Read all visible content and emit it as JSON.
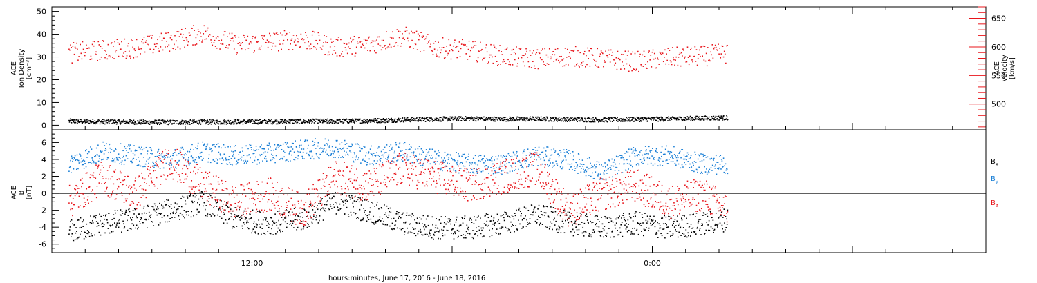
{
  "chart_data": [
    {
      "type": "scatter",
      "panel": "top",
      "ylabel_lines": [
        "ACE",
        "Ion Density",
        "[cm⁻³]"
      ],
      "ylim": [
        -2,
        52
      ],
      "yticks": [
        "0",
        "10",
        "20",
        "30",
        "40",
        "50"
      ],
      "ytick_values": [
        0,
        10,
        20,
        30,
        40,
        50
      ],
      "right_axis": {
        "ylabel_lines": [
          "ACE",
          "Velocity",
          "[km/s]"
        ],
        "ylim": [
          455,
          670
        ],
        "yticks": [
          "500",
          "550",
          "600",
          "650"
        ],
        "ytick_values": [
          500,
          550,
          600,
          650
        ],
        "color": "#e8151b"
      },
      "x_range_hours": [
        0,
        56
      ],
      "data_extent_hours": [
        1,
        40.5
      ],
      "series": [
        {
          "role": "ion-density",
          "color": "#000000",
          "axis": "left",
          "x": [
            1,
            3,
            5,
            7,
            9,
            11,
            13,
            15,
            17,
            19,
            21,
            23,
            25,
            27,
            29,
            31,
            33,
            35,
            37,
            39,
            40.5
          ],
          "y": [
            2,
            1.8,
            1.6,
            1.5,
            1.6,
            1.7,
            1.8,
            1.9,
            2.0,
            2.2,
            2.6,
            2.9,
            3.1,
            2.9,
            3.0,
            2.8,
            2.6,
            2.8,
            3.0,
            3.3,
            3.5
          ]
        },
        {
          "role": "velocity",
          "color": "#e8151b",
          "axis": "right",
          "x": [
            1,
            3,
            5,
            7,
            9,
            11,
            13,
            15,
            17,
            19,
            21,
            23,
            25,
            27,
            29,
            31,
            33,
            35,
            37,
            39,
            40.5
          ],
          "y": [
            590,
            595,
            600,
            610,
            625,
            605,
            610,
            615,
            600,
            605,
            620,
            600,
            595,
            585,
            580,
            585,
            580,
            575,
            582,
            585,
            590
          ]
        }
      ]
    },
    {
      "type": "scatter",
      "panel": "bottom",
      "ylabel_lines": [
        "ACE",
        "B",
        "[nT]"
      ],
      "ylim": [
        -7,
        7.5
      ],
      "yticks": [
        "-6",
        "-4",
        "-2",
        "0",
        "2",
        "4",
        "6"
      ],
      "ytick_values": [
        -6,
        -4,
        -2,
        0,
        2,
        4,
        6
      ],
      "x_range_hours": [
        0,
        56
      ],
      "data_extent_hours": [
        1,
        40.5
      ],
      "series": [
        {
          "name": "Bx",
          "color": "#000000",
          "x": [
            1,
            3,
            5,
            7,
            9,
            11,
            13,
            15,
            17,
            19,
            21,
            23,
            25,
            27,
            29,
            31,
            33,
            35,
            37,
            39,
            40.5
          ],
          "y": [
            -4.5,
            -3.5,
            -3,
            -2,
            -1,
            -3,
            -3.5,
            -3,
            -1,
            -2,
            -3.5,
            -4,
            -4,
            -3.5,
            -2.5,
            -3.5,
            -4,
            -3.5,
            -4,
            -3.5,
            -3
          ]
        },
        {
          "name": "By",
          "color": "#1a7fd6",
          "x": [
            1,
            3,
            5,
            7,
            9,
            11,
            13,
            15,
            17,
            19,
            21,
            23,
            25,
            27,
            29,
            31,
            33,
            35,
            37,
            39,
            40.5
          ],
          "y": [
            3.5,
            5,
            4.5,
            4,
            5,
            4.5,
            4.8,
            5.2,
            5.5,
            4.5,
            5,
            4,
            3.5,
            3.5,
            4.5,
            4,
            2.5,
            4.5,
            4.5,
            3.5,
            3.5
          ]
        },
        {
          "name": "Bz",
          "color": "#e8151b",
          "x": [
            1,
            3,
            5,
            7,
            9,
            11,
            13,
            15,
            17,
            19,
            21,
            23,
            25,
            27,
            29,
            31,
            33,
            35,
            37,
            39,
            40.5
          ],
          "y": [
            -1,
            2,
            0,
            4,
            1,
            -1,
            0,
            -2,
            2,
            1,
            3,
            2,
            1,
            2,
            3,
            -2,
            0,
            1,
            -1,
            0,
            -2
          ]
        }
      ]
    }
  ],
  "xaxis": {
    "tick_labels": [
      "12:00",
      "0:00",
      "12:00"
    ],
    "tick_hours": [
      12,
      36,
      60
    ],
    "caption": "hours:minutes, June 17, 2016 - June 18, 2016"
  },
  "legend": [
    {
      "base": "B",
      "sub": "x",
      "color": "#000000"
    },
    {
      "base": "B",
      "sub": "y",
      "color": "#1a7fd6"
    },
    {
      "base": "B",
      "sub": "z",
      "color": "#e8151b"
    }
  ]
}
